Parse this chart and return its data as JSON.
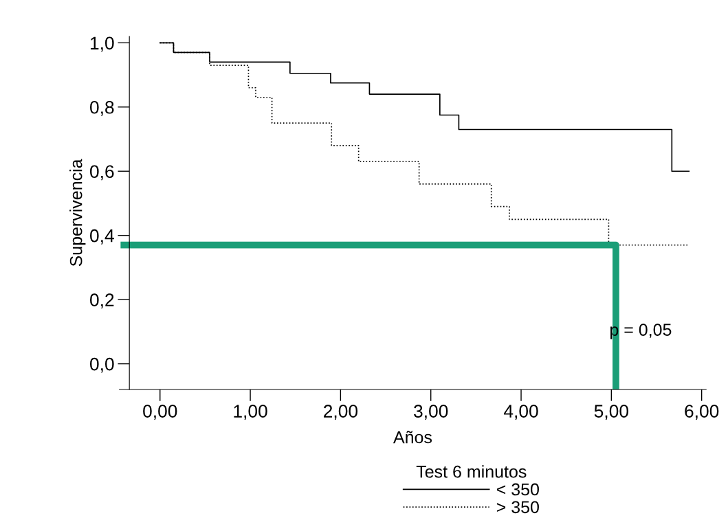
{
  "chart_data": {
    "type": "step",
    "xlabel": "Años",
    "ylabel": "Supervivencia",
    "legend_title": "Test 6 minutos",
    "legend": "bottom",
    "series": [
      {
        "name": "< 350",
        "color": "#000000",
        "line_style": "solid",
        "x": [
          0,
          0.15,
          0.55,
          1.44,
          1.89,
          2.32,
          3.1,
          3.31,
          5.67,
          5.86
        ],
        "values": [
          1.0,
          0.97,
          0.94,
          0.905,
          0.875,
          0.84,
          0.775,
          0.73,
          0.6,
          0.6
        ]
      },
      {
        "name": "> 350",
        "color": "#000000",
        "line_style": "dotted",
        "x": [
          0,
          0.15,
          0.55,
          0.98,
          1.06,
          1.24,
          1.9,
          2.2,
          2.87,
          3.67,
          3.87,
          4.97,
          5.85
        ],
        "values": [
          1.0,
          0.97,
          0.93,
          0.86,
          0.83,
          0.75,
          0.68,
          0.63,
          0.56,
          0.49,
          0.45,
          0.37,
          0.37
        ]
      },
      {
        "type": "line",
        "color": "#1a9e77",
        "line_style": "solid",
        "x": [
          -0.4,
          5.05,
          5.05
        ],
        "values": [
          0.37,
          0.37,
          -0.08
        ]
      }
    ],
    "xlim": [
      -0.45,
      6.05
    ],
    "ylim": [
      -0.08,
      1.02
    ],
    "xticks": [
      {
        "value": 0,
        "label": "0,00"
      },
      {
        "value": 1,
        "label": "1,00"
      },
      {
        "value": 2,
        "label": "2,00"
      },
      {
        "value": 3,
        "label": "3,00"
      },
      {
        "value": 4,
        "label": "4,00"
      },
      {
        "value": 5,
        "label": "5,00"
      },
      {
        "value": 6,
        "label": "6,00"
      }
    ],
    "yticks": [
      {
        "value": 0,
        "label": "0,0"
      },
      {
        "value": 0.2,
        "label": "0,2"
      },
      {
        "value": 0.4,
        "label": "0,4"
      },
      {
        "value": 0.6,
        "label": "0,6"
      },
      {
        "value": 0.8,
        "label": "0,8"
      },
      {
        "value": 1,
        "label": "1,0"
      }
    ],
    "annotations": [
      "p = 0,05"
    ],
    "grid": false
  }
}
